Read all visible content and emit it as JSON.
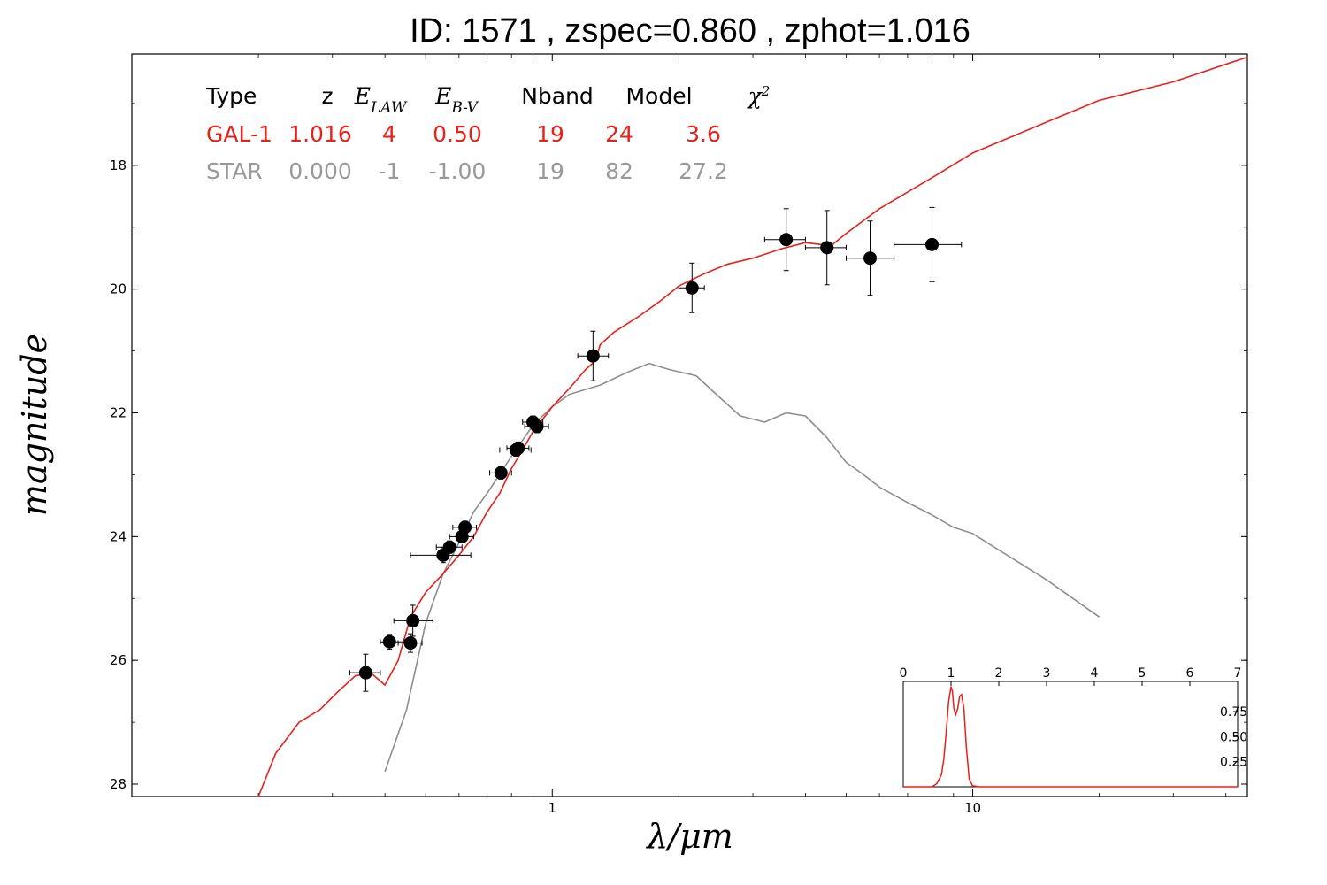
{
  "title": "ID:  1571  , zspec=0.860 , zphot=1.016",
  "chart_data": {
    "type": "scatter",
    "title": "ID:  1571  , zspec=0.860 , zphot=1.016",
    "xlabel": "λ/μm",
    "ylabel": "magnitude",
    "xscale": "log",
    "xlim": [
      0.1,
      45
    ],
    "ylim": [
      28.2,
      16.2
    ],
    "y_inverted": true,
    "x_ticks": [
      {
        "value": 1,
        "label": "1"
      },
      {
        "value": 10,
        "label": "10"
      }
    ],
    "y_ticks": [
      {
        "value": 18,
        "label": "18"
      },
      {
        "value": 20,
        "label": "20"
      },
      {
        "value": 22,
        "label": "22"
      },
      {
        "value": 24,
        "label": "24"
      },
      {
        "value": 26,
        "label": "26"
      },
      {
        "value": 28,
        "label": "28"
      }
    ],
    "grid": false,
    "legend_placement": "top-left",
    "colors": {
      "galaxy": "#e8211b",
      "star": "#8e8e8e",
      "points": "#000000"
    },
    "legend": {
      "headers": [
        "Type",
        "z",
        "E_LAW",
        "E_B-V",
        "Nband",
        "Model",
        "χ2"
      ],
      "rows": [
        {
          "color": "#e8211b",
          "cells": [
            "GAL-1",
            "1.016",
            "4",
            "0.50",
            "19",
            "24",
            "3.6"
          ]
        },
        {
          "color": "#999999",
          "cells": [
            "STAR",
            "0.000",
            "-1",
            "-1.00",
            "19",
            "82",
            "27.2"
          ]
        }
      ]
    },
    "observed_points": [
      {
        "x": 0.36,
        "y": 26.2,
        "xerr": [
          0.33,
          0.39
        ],
        "yerr": 0.3
      },
      {
        "x": 0.41,
        "y": 25.7,
        "xerr": [
          0.39,
          0.445
        ],
        "yerr": 0.12
      },
      {
        "x": 0.46,
        "y": 25.72,
        "xerr": [
          0.43,
          0.49
        ],
        "yerr": 0.15
      },
      {
        "x": 0.466,
        "y": 25.36,
        "xerr": [
          0.42,
          0.52
        ],
        "yerr": 0.25
      },
      {
        "x": 0.55,
        "y": 24.3,
        "xerr": [
          0.46,
          0.64
        ],
        "yerr": 0.12
      },
      {
        "x": 0.57,
        "y": 24.17,
        "xerr": [
          0.53,
          0.61
        ],
        "yerr": 0.1
      },
      {
        "x": 0.61,
        "y": 24.0,
        "xerr": [
          0.57,
          0.65
        ],
        "yerr": 0.1
      },
      {
        "x": 0.62,
        "y": 23.85,
        "xerr": [
          0.58,
          0.66
        ],
        "yerr": 0.1
      },
      {
        "x": 0.755,
        "y": 22.97,
        "xerr": [
          0.71,
          0.8
        ],
        "yerr": 0.1
      },
      {
        "x": 0.82,
        "y": 22.6,
        "xerr": [
          0.75,
          0.89
        ],
        "yerr": 0.1
      },
      {
        "x": 0.83,
        "y": 22.57,
        "xerr": [
          0.78,
          0.88
        ],
        "yerr": 0.1
      },
      {
        "x": 0.9,
        "y": 22.15,
        "xerr": [
          0.85,
          0.95
        ],
        "yerr": 0.1
      },
      {
        "x": 0.92,
        "y": 22.22,
        "xerr": [
          0.86,
          0.98
        ],
        "yerr": 0.1
      },
      {
        "x": 1.25,
        "y": 21.08,
        "xerr": [
          1.15,
          1.36
        ],
        "yerr": 0.4
      },
      {
        "x": 2.15,
        "y": 19.98,
        "xerr": [
          2.0,
          2.3
        ],
        "yerr": 0.4
      },
      {
        "x": 3.6,
        "y": 19.2,
        "xerr": [
          3.2,
          4.0
        ],
        "yerr": 0.5
      },
      {
        "x": 4.5,
        "y": 19.33,
        "xerr": [
          4.0,
          5.0
        ],
        "yerr": 0.6
      },
      {
        "x": 5.7,
        "y": 19.5,
        "xerr": [
          5.0,
          6.5
        ],
        "yerr": 0.6
      },
      {
        "x": 8.0,
        "y": 19.28,
        "xerr": [
          6.5,
          9.4
        ],
        "yerr": 0.6
      }
    ],
    "series": [
      {
        "x": [
          0.2,
          0.22,
          0.25,
          0.28,
          0.31,
          0.34,
          0.37,
          0.4,
          0.43,
          0.46,
          0.5,
          0.55,
          0.6,
          0.65,
          0.7,
          0.75,
          0.8,
          0.85,
          0.9,
          0.95,
          1.0,
          1.1,
          1.2,
          1.27,
          1.3,
          1.4,
          1.6,
          1.8,
          2.0,
          2.3,
          2.6,
          3.0,
          3.5,
          4.0,
          4.6,
          5.0,
          6.0,
          8.0,
          10,
          15,
          20,
          30,
          45
        ],
        "y": [
          28.2,
          27.5,
          27.0,
          26.8,
          26.5,
          26.25,
          26.2,
          26.4,
          26.0,
          25.3,
          24.9,
          24.6,
          24.3,
          24.0,
          23.6,
          23.3,
          22.9,
          22.6,
          22.3,
          22.1,
          21.9,
          21.6,
          21.3,
          21.15,
          20.9,
          20.7,
          20.45,
          20.2,
          19.95,
          19.75,
          19.6,
          19.5,
          19.35,
          19.25,
          19.3,
          19.1,
          18.7,
          18.2,
          17.8,
          17.3,
          16.95,
          16.65,
          16.25
        ]
      },
      {
        "x": [
          0.4,
          0.45,
          0.5,
          0.55,
          0.6,
          0.65,
          0.7,
          0.8,
          0.9,
          1.0,
          1.1,
          1.3,
          1.5,
          1.7,
          1.9,
          2.2,
          2.5,
          2.8,
          3.2,
          3.6,
          4.0,
          4.5,
          5.0,
          5.5,
          6.0,
          7.0,
          8.0,
          9.0,
          10,
          15,
          20
        ],
        "y": [
          27.8,
          26.8,
          25.4,
          24.6,
          24.1,
          23.6,
          23.3,
          22.7,
          22.2,
          21.9,
          21.7,
          21.55,
          21.35,
          21.2,
          21.3,
          21.4,
          21.75,
          22.05,
          22.15,
          22.0,
          22.05,
          22.4,
          22.8,
          23.0,
          23.2,
          23.45,
          23.65,
          23.85,
          23.95,
          24.7,
          25.3
        ]
      }
    ],
    "inset": {
      "type": "line",
      "x_ticks": [
        "0",
        "1",
        "2",
        "3",
        "4",
        "5",
        "6",
        "7"
      ],
      "y_ticks": [
        "0.25",
        "0.50",
        "0.75"
      ],
      "xlim": [
        0,
        7
      ],
      "ylim": [
        0,
        1.05
      ],
      "x": [
        0,
        0.6,
        0.7,
        0.8,
        0.85,
        0.9,
        0.95,
        1.0,
        1.03,
        1.06,
        1.1,
        1.14,
        1.18,
        1.22,
        1.27,
        1.32,
        1.38,
        1.45,
        1.6,
        7
      ],
      "y": [
        0,
        0,
        0.03,
        0.12,
        0.28,
        0.55,
        0.85,
        1.0,
        0.95,
        0.78,
        0.72,
        0.78,
        0.9,
        0.92,
        0.78,
        0.4,
        0.08,
        0.01,
        0,
        0
      ]
    }
  }
}
